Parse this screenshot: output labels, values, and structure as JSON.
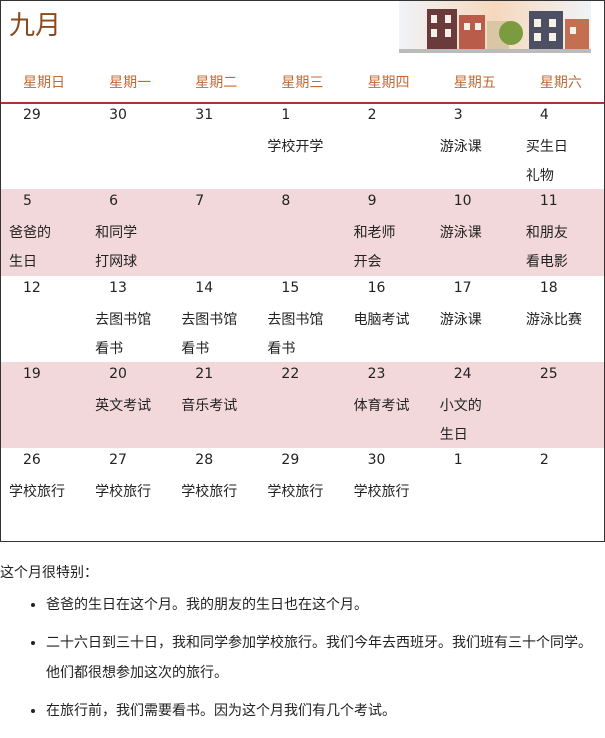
{
  "title": "九月",
  "weekdays": [
    "星期日",
    "星期一",
    "星期二",
    "星期三",
    "星期四",
    "星期五",
    "星期六"
  ],
  "weeks": [
    [
      {
        "date": "29"
      },
      {
        "date": "30"
      },
      {
        "date": "31"
      },
      {
        "date": "1",
        "lines": [
          "学校开学"
        ]
      },
      {
        "date": "2"
      },
      {
        "date": "3",
        "lines": [
          "游泳课"
        ]
      },
      {
        "date": "4",
        "lines": [
          "买生日",
          "礼物"
        ]
      }
    ],
    [
      {
        "date": "5",
        "lines": [
          "爸爸的",
          "生日"
        ]
      },
      {
        "date": "6",
        "lines": [
          "和同学",
          "打网球"
        ]
      },
      {
        "date": "7"
      },
      {
        "date": "8"
      },
      {
        "date": "9",
        "lines": [
          "和老师",
          "开会"
        ]
      },
      {
        "date": "10",
        "lines": [
          "游泳课"
        ]
      },
      {
        "date": "11",
        "lines": [
          "和朋友",
          "看电影"
        ]
      }
    ],
    [
      {
        "date": "12"
      },
      {
        "date": "13",
        "lines": [
          "去图书馆",
          "看书"
        ]
      },
      {
        "date": "14",
        "lines": [
          "去图书馆",
          "看书"
        ]
      },
      {
        "date": "15",
        "lines": [
          "去图书馆",
          "看书"
        ]
      },
      {
        "date": "16",
        "lines": [
          "电脑考试"
        ]
      },
      {
        "date": "17",
        "lines": [
          "游泳课"
        ]
      },
      {
        "date": "18",
        "lines": [
          "游泳比赛"
        ]
      }
    ],
    [
      {
        "date": "19"
      },
      {
        "date": "20",
        "lines": [
          "英文考试"
        ]
      },
      {
        "date": "21",
        "lines": [
          "音乐考试"
        ]
      },
      {
        "date": "22"
      },
      {
        "date": "23",
        "lines": [
          "体育考试"
        ]
      },
      {
        "date": "24",
        "lines": [
          "小文的",
          "生日"
        ]
      },
      {
        "date": "25"
      }
    ],
    [
      {
        "date": "26",
        "lines": [
          "学校旅行"
        ]
      },
      {
        "date": "27",
        "lines": [
          "学校旅行"
        ]
      },
      {
        "date": "28",
        "lines": [
          "学校旅行"
        ]
      },
      {
        "date": "29",
        "lines": [
          "学校旅行"
        ]
      },
      {
        "date": "30",
        "lines": [
          "学校旅行"
        ]
      },
      {
        "date": "1"
      },
      {
        "date": "2"
      }
    ]
  ],
  "intro": "这个月很特别：",
  "bullets": [
    "爸爸的生日在这个月。我的朋友的生日也在这个月。",
    "二十六日到三十日，我和同学参加学校旅行。我们今年去西班牙。我们班有三十个同学。他们都很想参加这次的旅行。",
    "在旅行前，我们需要看书。因为这个月我们有几个考试。"
  ]
}
